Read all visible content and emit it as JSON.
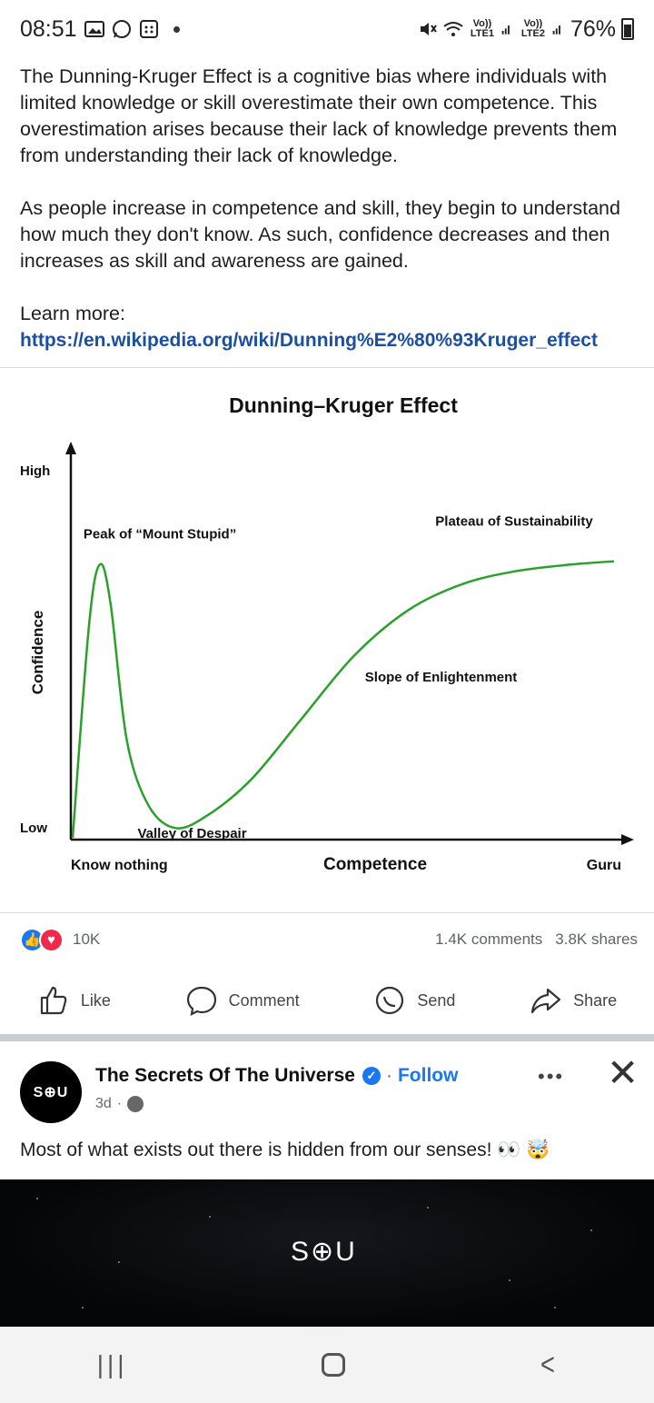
{
  "status_bar": {
    "time": "08:51",
    "battery": "76%",
    "sim1": "Vo)) LTE1",
    "sim2": "Vo)) LTE2"
  },
  "post": {
    "paragraph1": "The Dunning-Kruger Effect is a cognitive bias where individuals with limited knowledge or skill overestimate their own competence. This overestimation arises because their lack of knowledge prevents them from understanding their lack of knowledge.",
    "paragraph2": "As people increase in competence and skill, they begin to understand how much they don't know. As such, confidence decreases and then increases as skill and awareness are gained.",
    "learn_more": "Learn more:",
    "link": "https://en.wikipedia.org/wiki/Dunning%E2%80%93Kruger_effect"
  },
  "chart_data": {
    "type": "line",
    "title": "Dunning–Kruger Effect",
    "xlabel": "Competence",
    "ylabel": "Confidence",
    "x_ticks": [
      "Know nothing",
      "Guru"
    ],
    "y_ticks": [
      "Low",
      "High"
    ],
    "xlim": [
      0,
      100
    ],
    "ylim": [
      0,
      100
    ],
    "series": [
      {
        "x": [
          0,
          3,
          5,
          7,
          10,
          14,
          19,
          25,
          33,
          42,
          52,
          62,
          72,
          82,
          92,
          100
        ],
        "y": [
          0,
          65,
          84,
          72,
          30,
          10,
          3,
          7,
          18,
          36,
          56,
          70,
          78,
          82,
          84,
          85
        ]
      }
    ],
    "annotations": [
      {
        "text": "Peak of “Mount Stupid”",
        "x": 2,
        "y": 92
      },
      {
        "text": "Valley of Despair",
        "x": 12,
        "y": 0
      },
      {
        "text": "Slope of Enlightenment",
        "x": 54,
        "y": 48
      },
      {
        "text": "Plateau of Sustainability",
        "x": 67,
        "y": 96
      }
    ],
    "line_color": "#2aa12a",
    "grid": false
  },
  "engagement": {
    "reaction_count": "10K",
    "comments": "1.4K comments",
    "shares": "3.8K shares"
  },
  "actions": {
    "like": "Like",
    "comment": "Comment",
    "send": "Send",
    "share": "Share"
  },
  "next_post": {
    "avatar_text": "S⊕U",
    "page_name": "The Secrets Of The Universe",
    "follow": "Follow",
    "time": "3d",
    "text": "Most of what exists out there is hidden from our senses! 👀 🤯",
    "media_logo": "S⊕U"
  },
  "colors": {
    "link": "#1b4fa0",
    "facebook_blue": "#1877f2",
    "love_red": "#f0284a"
  }
}
